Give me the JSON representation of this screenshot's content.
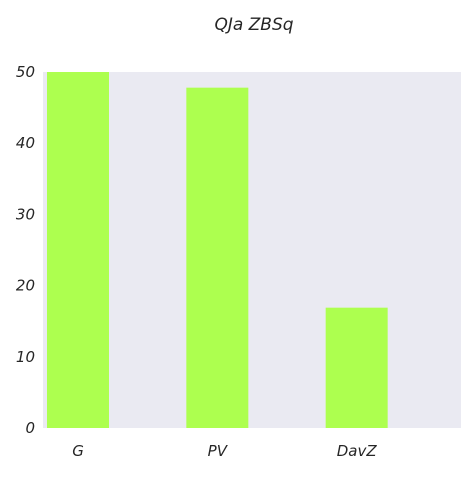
{
  "chart_data": {
    "type": "bar",
    "title": "QJa  ZBSq",
    "xlabel": "",
    "ylabel": "",
    "categories": [
      "G",
      "PV",
      "DavZ"
    ],
    "values": [
      50,
      47.8,
      16.9
    ],
    "ylim": [
      0,
      50
    ],
    "yticks": [
      0,
      10,
      20,
      30,
      40,
      50
    ],
    "ytick_labels": [
      "0",
      "10",
      "20",
      "30",
      "40",
      "50"
    ],
    "grid": false,
    "legend": "none",
    "colors": {
      "bar": "#adff4f",
      "plot_background": "#eaeaf2",
      "page_background": "#ffffff",
      "text": "#262626"
    }
  }
}
